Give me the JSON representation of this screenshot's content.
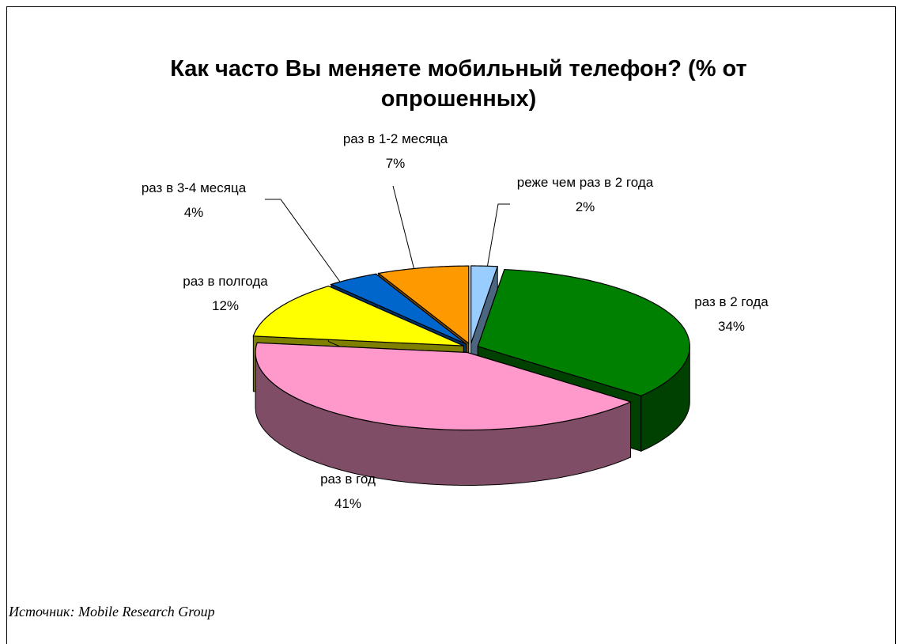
{
  "chart_data": {
    "type": "pie3d",
    "title": "Как часто Вы меняете мобильный телефон? (% от опрошенных)",
    "source": "Источник: Mobile Research Group",
    "categories": [
      "реже чем раз в 2 года",
      "раз в 2 года",
      "раз в год",
      "раз в полгода",
      "раз в 3-4 месяца",
      "раз в 1-2 месяца"
    ],
    "values": [
      2,
      34,
      41,
      12,
      4,
      7
    ],
    "value_labels": [
      "2%",
      "34%",
      "41%",
      "12%",
      "4%",
      "7%"
    ],
    "colors": [
      "#99ccff",
      "#008000",
      "#ff99cc",
      "#ffff00",
      "#0066cc",
      "#ff9900"
    ],
    "side_colors": [
      "#4d6680",
      "#004000",
      "#804d66",
      "#808000",
      "#003366",
      "#804d00"
    ]
  }
}
